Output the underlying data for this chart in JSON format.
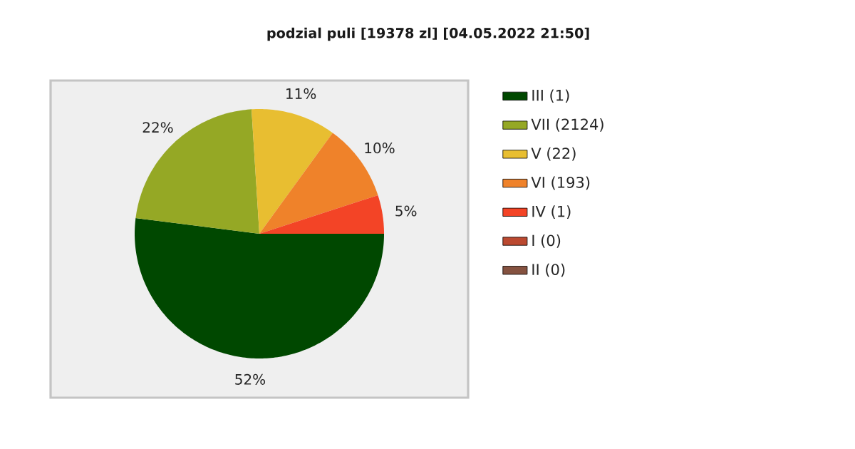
{
  "chart_data": {
    "type": "pie",
    "title": "podzial puli [19378 zl] [04.05.2022 21:50]",
    "categories": [
      "III (1)",
      "VII (2124)",
      "V (22)",
      "VI (193)",
      "IV (1)",
      "I (0)",
      "II (0)"
    ],
    "values": [
      52,
      22,
      11,
      10,
      5,
      0,
      0
    ],
    "colors": [
      "#004800",
      "#95a825",
      "#e8be31",
      "#ef822a",
      "#f34426",
      "#bb4930",
      "#855240"
    ],
    "value_labels": [
      "52%",
      "22%",
      "11%",
      "10%",
      "5%",
      null,
      null
    ],
    "legend": "right"
  }
}
